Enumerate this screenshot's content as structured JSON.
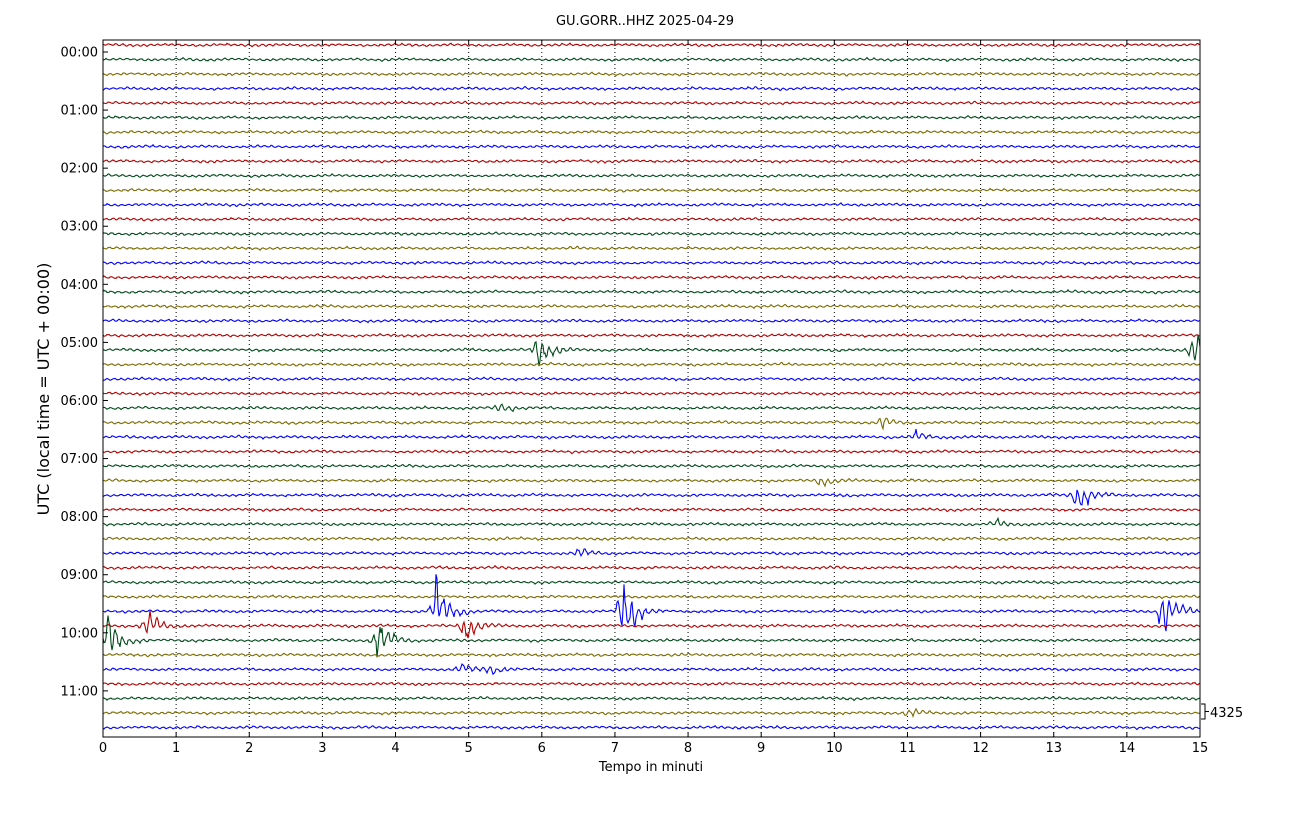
{
  "chart_data": {
    "type": "line",
    "title": "GU.GORR..HHZ 2025-04-29",
    "xlabel": "Tempo in minuti",
    "ylabel": "UTC (local time = UTC + 00:00)",
    "xlim": [
      0,
      15
    ],
    "x_ticks": [
      "0",
      "1",
      "2",
      "3",
      "4",
      "5",
      "6",
      "7",
      "8",
      "9",
      "10",
      "11",
      "12",
      "13",
      "14",
      "15"
    ],
    "y_ticks": [
      "00:00",
      "01:00",
      "02:00",
      "03:00",
      "04:00",
      "05:00",
      "06:00",
      "07:00",
      "08:00",
      "09:00",
      "10:00",
      "11:00"
    ],
    "trace_count": 48,
    "trace_interval_minutes": 15,
    "trace_colors": [
      "#b00000",
      "#004a1a",
      "#7a6a00",
      "#0000ff"
    ],
    "scale_label": "4325",
    "grid": "x-dotted",
    "events": [
      {
        "trace": 21,
        "minute": 5.95,
        "amp": 1.3
      },
      {
        "trace": 21,
        "minute": 14.9,
        "amp": 1.7
      },
      {
        "trace": 25,
        "minute": 5.4,
        "amp": 0.3
      },
      {
        "trace": 26,
        "minute": 10.65,
        "amp": 0.45
      },
      {
        "trace": 27,
        "minute": 11.1,
        "amp": 0.3
      },
      {
        "trace": 30,
        "minute": 9.8,
        "amp": 0.35
      },
      {
        "trace": 31,
        "minute": 13.3,
        "amp": 1.1
      },
      {
        "trace": 33,
        "minute": 12.2,
        "amp": 0.25
      },
      {
        "trace": 35,
        "minute": 6.5,
        "amp": 0.3
      },
      {
        "trace": 39,
        "minute": 4.55,
        "amp": 1.9
      },
      {
        "trace": 39,
        "minute": 7.1,
        "amp": 1.9
      },
      {
        "trace": 39,
        "minute": 14.5,
        "amp": 1.9
      },
      {
        "trace": 40,
        "minute": 0.6,
        "amp": 0.9
      },
      {
        "trace": 40,
        "minute": 4.95,
        "amp": 1.1
      },
      {
        "trace": 41,
        "minute": 0.05,
        "amp": 1.7
      },
      {
        "trace": 41,
        "minute": 3.75,
        "amp": 1.2
      },
      {
        "trace": 43,
        "minute": 4.9,
        "amp": 0.4
      },
      {
        "trace": 43,
        "minute": 5.3,
        "amp": 0.35
      },
      {
        "trace": 46,
        "minute": 11.0,
        "amp": 0.25
      }
    ]
  }
}
